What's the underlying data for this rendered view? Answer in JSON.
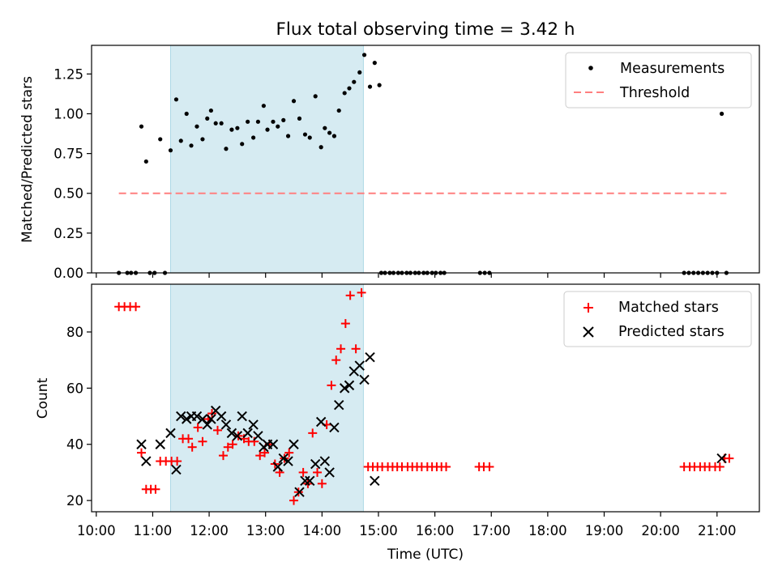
{
  "title": "Flux total observing time = 3.42 h",
  "colors": {
    "band": "#add8e6",
    "matched": "#ff0000",
    "predicted": "#000000",
    "threshold": "#ff7f7f",
    "measurement": "#000000"
  },
  "chart_data": [
    {
      "type": "scatter",
      "panel": "top",
      "ylabel": "Matched/Predicted stars",
      "xlabel": "",
      "ylim": [
        0,
        1.43
      ],
      "xlim": [
        "09:55",
        "21:45"
      ],
      "y_ticks": [
        "0.00",
        "0.25",
        "0.50",
        "0.75",
        "1.00",
        "1.25"
      ],
      "y_tick_values": [
        0,
        0.25,
        0.5,
        0.75,
        1.0,
        1.25
      ],
      "shaded_interval": [
        "11:19",
        "14:44"
      ],
      "legend": {
        "position": "top-right",
        "entries": [
          "Measurements",
          "Threshold"
        ]
      },
      "threshold": {
        "name": "Threshold",
        "y": 0.5,
        "x_range": [
          "10:24",
          "21:10"
        ],
        "style": "dashed"
      },
      "series": [
        {
          "name": "Measurements",
          "marker": "dot",
          "points": [
            [
              "10:24",
              0
            ],
            [
              "10:33",
              0
            ],
            [
              "10:37",
              0
            ],
            [
              "10:42",
              0
            ],
            [
              "10:48",
              0.92
            ],
            [
              "10:53",
              0.7
            ],
            [
              "10:57",
              0
            ],
            [
              "11:02",
              0
            ],
            [
              "11:08",
              0.84
            ],
            [
              "11:13",
              0
            ],
            [
              "11:19",
              0.77
            ],
            [
              "11:25",
              1.09
            ],
            [
              "11:30",
              0.83
            ],
            [
              "11:36",
              1.0
            ],
            [
              "11:41",
              0.8
            ],
            [
              "11:47",
              0.92
            ],
            [
              "11:53",
              0.84
            ],
            [
              "11:58",
              0.97
            ],
            [
              "12:02",
              1.02
            ],
            [
              "12:07",
              0.94
            ],
            [
              "12:13",
              0.94
            ],
            [
              "12:18",
              0.78
            ],
            [
              "12:24",
              0.9
            ],
            [
              "12:30",
              0.91
            ],
            [
              "12:35",
              0.81
            ],
            [
              "12:41",
              0.95
            ],
            [
              "12:47",
              0.85
            ],
            [
              "12:52",
              0.95
            ],
            [
              "12:58",
              1.05
            ],
            [
              "13:02",
              0.9
            ],
            [
              "13:08",
              0.95
            ],
            [
              "13:13",
              0.92
            ],
            [
              "13:19",
              0.96
            ],
            [
              "13:24",
              0.86
            ],
            [
              "13:30",
              1.08
            ],
            [
              "13:36",
              0.97
            ],
            [
              "13:42",
              0.87
            ],
            [
              "13:47",
              0.85
            ],
            [
              "13:53",
              1.11
            ],
            [
              "13:59",
              0.79
            ],
            [
              "14:03",
              0.91
            ],
            [
              "14:08",
              0.88
            ],
            [
              "14:13",
              0.86
            ],
            [
              "14:18",
              1.02
            ],
            [
              "14:24",
              1.13
            ],
            [
              "14:29",
              1.16
            ],
            [
              "14:34",
              1.2
            ],
            [
              "14:40",
              1.26
            ],
            [
              "14:45",
              1.37
            ],
            [
              "14:51",
              1.17
            ],
            [
              "14:56",
              1.32
            ],
            [
              "15:01",
              1.18
            ],
            [
              "15:03",
              0
            ],
            [
              "15:07",
              0
            ],
            [
              "15:12",
              0
            ],
            [
              "15:16",
              0
            ],
            [
              "15:21",
              0
            ],
            [
              "15:25",
              0
            ],
            [
              "15:30",
              0
            ],
            [
              "15:34",
              0
            ],
            [
              "15:39",
              0
            ],
            [
              "15:43",
              0
            ],
            [
              "15:48",
              0
            ],
            [
              "15:52",
              0
            ],
            [
              "15:57",
              0
            ],
            [
              "16:01",
              0
            ],
            [
              "16:06",
              0
            ],
            [
              "16:10",
              0
            ],
            [
              "16:48",
              0
            ],
            [
              "16:53",
              0
            ],
            [
              "16:58",
              0
            ],
            [
              "20:25",
              0
            ],
            [
              "20:30",
              0
            ],
            [
              "20:35",
              0
            ],
            [
              "20:40",
              0
            ],
            [
              "20:45",
              0
            ],
            [
              "20:50",
              0
            ],
            [
              "20:55",
              0
            ],
            [
              "21:00",
              0
            ],
            [
              "21:05",
              1.0
            ],
            [
              "21:10",
              0
            ]
          ]
        }
      ]
    },
    {
      "type": "scatter",
      "panel": "bottom",
      "ylabel": "Count",
      "xlabel": "Time (UTC)",
      "ylim": [
        16,
        97
      ],
      "xlim": [
        "09:55",
        "21:45"
      ],
      "y_ticks": [
        "20",
        "40",
        "60",
        "80"
      ],
      "y_tick_values": [
        20,
        40,
        60,
        80
      ],
      "x_ticks": [
        "10:00",
        "11:00",
        "12:00",
        "13:00",
        "14:00",
        "15:00",
        "16:00",
        "17:00",
        "18:00",
        "19:00",
        "20:00",
        "21:00"
      ],
      "shaded_interval": [
        "11:19",
        "14:44"
      ],
      "legend": {
        "position": "top-right",
        "entries": [
          "Matched stars",
          "Predicted stars"
        ]
      },
      "series": [
        {
          "name": "Matched stars",
          "marker": "plus",
          "points": [
            [
              "10:24",
              89
            ],
            [
              "10:30",
              89
            ],
            [
              "10:36",
              89
            ],
            [
              "10:42",
              89
            ],
            [
              "10:48",
              37
            ],
            [
              "10:53",
              24
            ],
            [
              "10:58",
              24
            ],
            [
              "11:03",
              24
            ],
            [
              "11:08",
              34
            ],
            [
              "11:14",
              34
            ],
            [
              "11:20",
              34
            ],
            [
              "11:26",
              34
            ],
            [
              "11:32",
              42
            ],
            [
              "11:38",
              42
            ],
            [
              "11:42",
              39
            ],
            [
              "11:48",
              46
            ],
            [
              "11:53",
              41
            ],
            [
              "11:59",
              49
            ],
            [
              "12:03",
              51
            ],
            [
              "12:09",
              45
            ],
            [
              "12:15",
              36
            ],
            [
              "12:20",
              39
            ],
            [
              "12:25",
              40
            ],
            [
              "12:31",
              43
            ],
            [
              "12:37",
              42
            ],
            [
              "12:42",
              41
            ],
            [
              "12:48",
              41
            ],
            [
              "12:54",
              36
            ],
            [
              "12:59",
              37
            ],
            [
              "13:04",
              40
            ],
            [
              "13:10",
              33
            ],
            [
              "13:15",
              30
            ],
            [
              "13:20",
              35
            ],
            [
              "13:25",
              37
            ],
            [
              "13:30",
              20
            ],
            [
              "13:35",
              23
            ],
            [
              "13:40",
              30
            ],
            [
              "13:45",
              26
            ],
            [
              "13:50",
              44
            ],
            [
              "13:55",
              30
            ],
            [
              "14:00",
              26
            ],
            [
              "14:05",
              47
            ],
            [
              "14:10",
              61
            ],
            [
              "14:15",
              70
            ],
            [
              "14:20",
              74
            ],
            [
              "14:25",
              83
            ],
            [
              "14:30",
              93
            ],
            [
              "14:36",
              74
            ],
            [
              "14:42",
              94
            ],
            [
              "14:49",
              32
            ],
            [
              "14:54",
              32
            ],
            [
              "14:59",
              32
            ],
            [
              "15:04",
              32
            ],
            [
              "15:10",
              32
            ],
            [
              "15:15",
              32
            ],
            [
              "15:20",
              32
            ],
            [
              "15:25",
              32
            ],
            [
              "15:31",
              32
            ],
            [
              "15:36",
              32
            ],
            [
              "15:41",
              32
            ],
            [
              "15:46",
              32
            ],
            [
              "15:52",
              32
            ],
            [
              "15:57",
              32
            ],
            [
              "16:02",
              32
            ],
            [
              "16:07",
              32
            ],
            [
              "16:12",
              32
            ],
            [
              "16:47",
              32
            ],
            [
              "16:52",
              32
            ],
            [
              "16:58",
              32
            ],
            [
              "20:25",
              32
            ],
            [
              "20:31",
              32
            ],
            [
              "20:36",
              32
            ],
            [
              "20:42",
              32
            ],
            [
              "20:47",
              32
            ],
            [
              "20:52",
              32
            ],
            [
              "20:58",
              32
            ],
            [
              "21:03",
              32
            ],
            [
              "21:08",
              35
            ],
            [
              "21:13",
              35
            ]
          ]
        },
        {
          "name": "Predicted stars",
          "marker": "x",
          "points": [
            [
              "10:48",
              40
            ],
            [
              "10:53",
              34
            ],
            [
              "11:08",
              40
            ],
            [
              "11:19",
              44
            ],
            [
              "11:25",
              31
            ],
            [
              "11:30",
              50
            ],
            [
              "11:36",
              49
            ],
            [
              "11:41",
              50
            ],
            [
              "11:47",
              50
            ],
            [
              "11:53",
              49
            ],
            [
              "11:58",
              47
            ],
            [
              "12:02",
              49
            ],
            [
              "12:07",
              52
            ],
            [
              "12:13",
              50
            ],
            [
              "12:18",
              47
            ],
            [
              "12:24",
              44
            ],
            [
              "12:30",
              43
            ],
            [
              "12:35",
              50
            ],
            [
              "12:41",
              44
            ],
            [
              "12:47",
              47
            ],
            [
              "12:52",
              43
            ],
            [
              "12:58",
              39
            ],
            [
              "13:02",
              40
            ],
            [
              "13:08",
              40
            ],
            [
              "13:13",
              32
            ],
            [
              "13:19",
              35
            ],
            [
              "13:24",
              34
            ],
            [
              "13:30",
              40
            ],
            [
              "13:36",
              23
            ],
            [
              "13:42",
              27
            ],
            [
              "13:47",
              27
            ],
            [
              "13:53",
              33
            ],
            [
              "13:59",
              48
            ],
            [
              "14:03",
              34
            ],
            [
              "14:08",
              30
            ],
            [
              "14:13",
              46
            ],
            [
              "14:18",
              54
            ],
            [
              "14:24",
              60
            ],
            [
              "14:29",
              61
            ],
            [
              "14:34",
              66
            ],
            [
              "14:40",
              68
            ],
            [
              "14:45",
              63
            ],
            [
              "14:51",
              71
            ],
            [
              "14:56",
              27
            ],
            [
              "21:05",
              35
            ]
          ]
        }
      ]
    }
  ]
}
